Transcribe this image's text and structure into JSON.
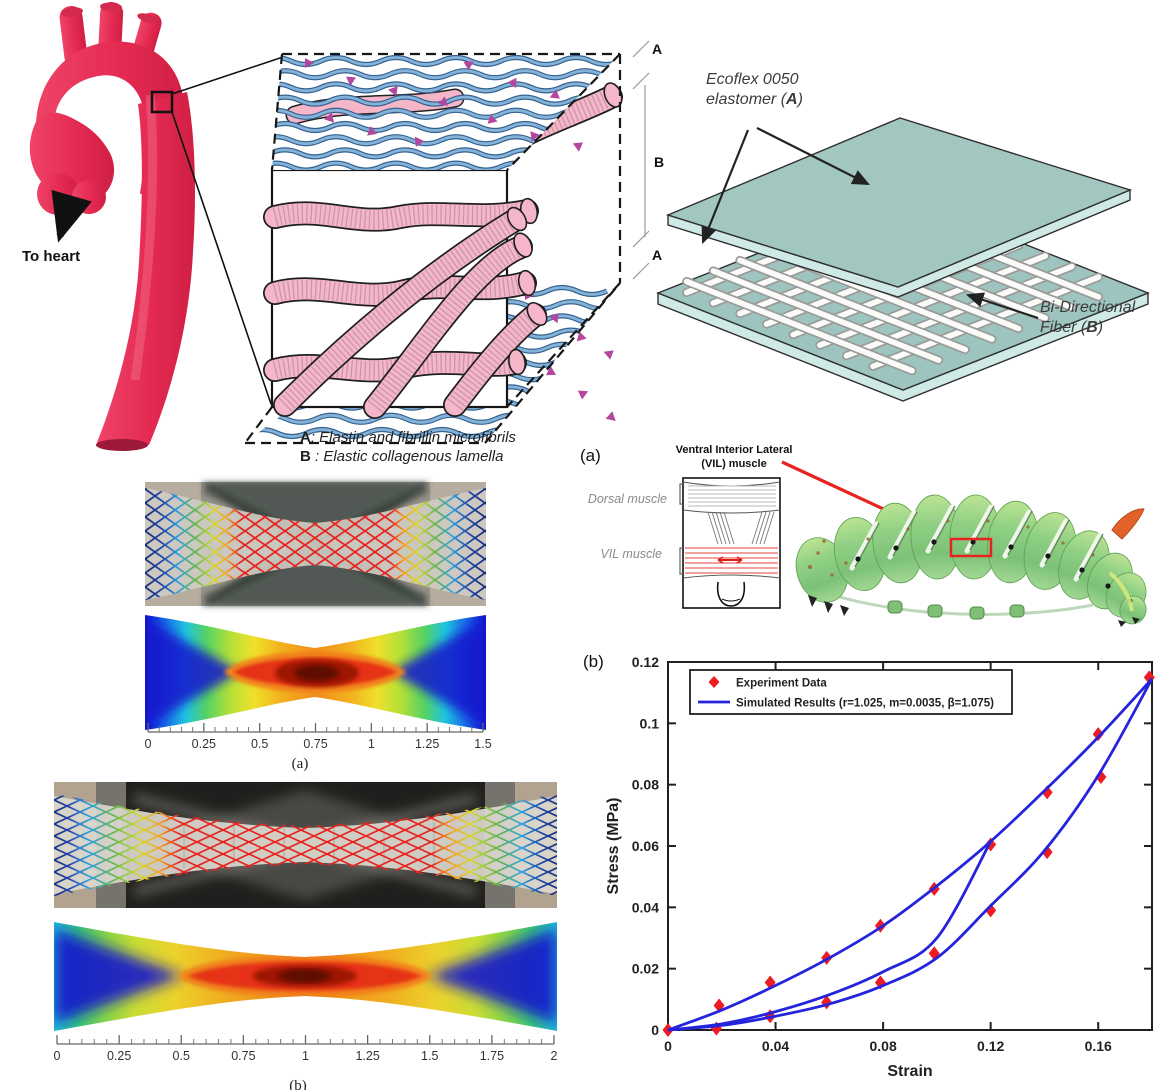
{
  "aorta_panel": {
    "to_heart_label": "To heart"
  },
  "microstructure_panel": {
    "bracket_labels": [
      "A",
      "B",
      "A"
    ],
    "legend": [
      {
        "key": "A",
        "text": ": Elastin and fibrillin microfibrils"
      },
      {
        "key": "B",
        "text": " : Elastic collagenous lamella"
      }
    ]
  },
  "laminate_panel": {
    "elastomer_label": {
      "line1": "Ecoflex 0050",
      "prefix": "elastomer (",
      "key": "A",
      "suffix": ")"
    },
    "fiber_label": {
      "line1": "Bi-Directional",
      "prefix": "Fiber (",
      "key": "B",
      "suffix": ")"
    },
    "plate_color": "#9dc4be"
  },
  "caterpillar_panel": {
    "section_label": "(a)",
    "vil_title_line1": "Ventral Interior Lateral",
    "vil_title_line2": "(VIL) muscle",
    "dorsal_muscle_label": "Dorsal muscle",
    "vil_muscle_label": "VIL muscle",
    "annotation_color": "#e8231f"
  },
  "specimen_figures": [
    {
      "caption": "(a)",
      "ruler": {
        "min": 0,
        "max": 1.5,
        "ticks": [
          0,
          0.25,
          0.5,
          0.75,
          1,
          1.25,
          1.5
        ],
        "labels": [
          "0",
          "0.25",
          "0.5",
          "0.75",
          "1",
          "1.25",
          "1.5"
        ],
        "minor_per_interval": 4
      }
    },
    {
      "caption": "(b)",
      "ruler": {
        "min": 0,
        "max": 2,
        "ticks": [
          0,
          0.25,
          0.5,
          0.75,
          1,
          1.25,
          1.5,
          1.75,
          2
        ],
        "labels": [
          "0",
          "0.25",
          "0.5",
          "0.75",
          "1",
          "1.25",
          "1.5",
          "1.75",
          "2"
        ],
        "minor_per_interval": 4
      }
    }
  ],
  "stress_chart": {
    "section_label": "(b)"
  },
  "chart_data": {
    "type": "line",
    "title": "",
    "xlabel": "Strain",
    "ylabel": "Stress (MPa)",
    "xlim": [
      0,
      0.18
    ],
    "ylim": [
      0,
      0.12
    ],
    "x_ticks": [
      0,
      0.04,
      0.08,
      0.12,
      0.16
    ],
    "x_tick_labels": [
      "0",
      "0.04",
      "0.08",
      "0.12",
      "0.16"
    ],
    "y_ticks": [
      0,
      0.02,
      0.04,
      0.06,
      0.08,
      0.1,
      0.12
    ],
    "y_tick_labels": [
      "0",
      "0.02",
      "0.04",
      "0.06",
      "0.08",
      "0.1",
      "0.12"
    ],
    "grid": false,
    "legend": {
      "position": "top-left",
      "entries": [
        {
          "label": "Experiment Data",
          "marker": "diamond",
          "color": "#ed1c24"
        },
        {
          "label": "Simulated Results (r=1.025, m=0.0035, β=1.075)",
          "marker": "line",
          "color": "#2424dd"
        }
      ]
    },
    "series": [
      {
        "name": "Experiment Data",
        "type": "scatter",
        "color": "#ed1c24",
        "points": [
          [
            0,
            0
          ],
          [
            0.018,
            0.0005
          ],
          [
            0.019,
            0.008
          ],
          [
            0.038,
            0.0045
          ],
          [
            0.038,
            0.0155
          ],
          [
            0.059,
            0.009
          ],
          [
            0.059,
            0.0235
          ],
          [
            0.079,
            0.0155
          ],
          [
            0.079,
            0.034
          ],
          [
            0.099,
            0.025
          ],
          [
            0.099,
            0.046
          ],
          [
            0.12,
            0.039
          ],
          [
            0.12,
            0.0605
          ],
          [
            0.141,
            0.058
          ],
          [
            0.141,
            0.0775
          ],
          [
            0.161,
            0.0825
          ],
          [
            0.16,
            0.0965
          ],
          [
            0.179,
            0.115
          ]
        ]
      },
      {
        "name": "Simulated loading branch",
        "type": "line",
        "color": "#2424dd",
        "points": [
          [
            0,
            0
          ],
          [
            0.02,
            0.0065
          ],
          [
            0.04,
            0.0145
          ],
          [
            0.06,
            0.0235
          ],
          [
            0.08,
            0.034
          ],
          [
            0.1,
            0.047
          ],
          [
            0.12,
            0.0615
          ],
          [
            0.14,
            0.078
          ],
          [
            0.16,
            0.0955
          ],
          [
            0.18,
            0.1145
          ]
        ]
      },
      {
        "name": "Simulated unloading (large cycle)",
        "type": "line",
        "color": "#2424dd",
        "points": [
          [
            0.18,
            0.1145
          ],
          [
            0.16,
            0.083
          ],
          [
            0.14,
            0.0585
          ],
          [
            0.12,
            0.0405
          ],
          [
            0.1,
            0.0235
          ],
          [
            0.08,
            0.0145
          ],
          [
            0.06,
            0.0085
          ],
          [
            0.04,
            0.0045
          ],
          [
            0.02,
            0.0015
          ],
          [
            0,
            0
          ]
        ]
      },
      {
        "name": "Simulated unloading (small cycle)",
        "type": "line",
        "color": "#2424dd",
        "points": [
          [
            0.12,
            0.0615
          ],
          [
            0.1,
            0.03
          ],
          [
            0.08,
            0.019
          ],
          [
            0.06,
            0.0115
          ],
          [
            0.04,
            0.006
          ],
          [
            0.02,
            0.002
          ],
          [
            0,
            0
          ]
        ]
      }
    ]
  }
}
